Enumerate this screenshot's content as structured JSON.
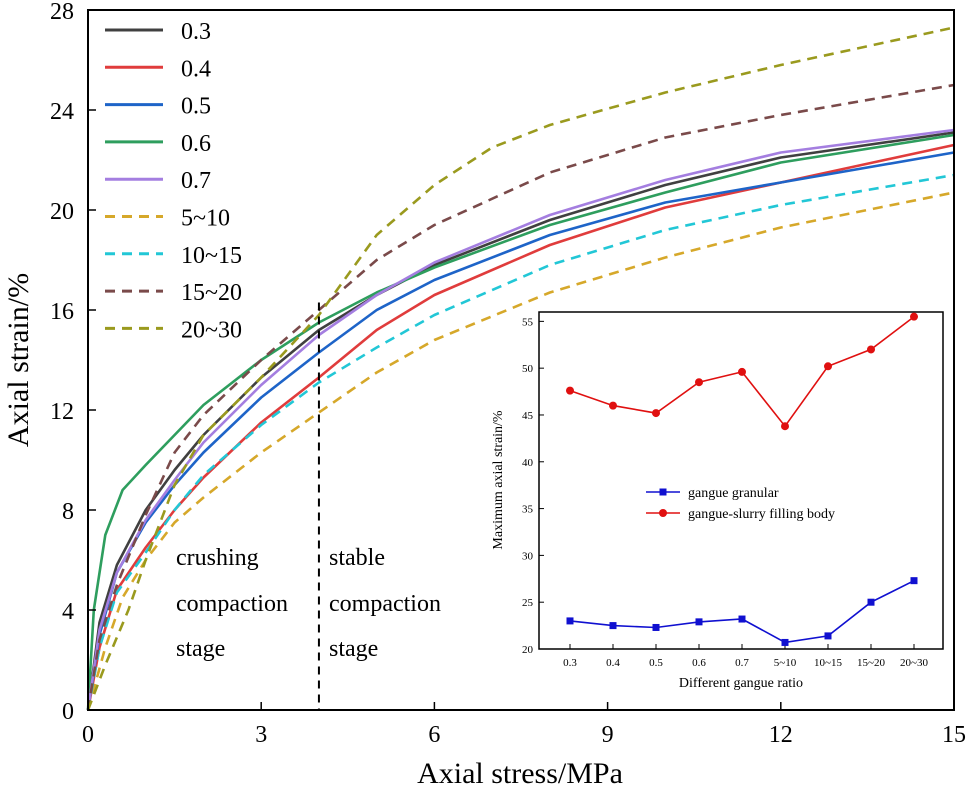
{
  "chart_data": [
    {
      "type": "line",
      "xlabel": "Axial stress/MPa",
      "ylabel": "Axial strain/%",
      "xlim": [
        0,
        15
      ],
      "ylim": [
        0,
        28
      ],
      "xticks": [
        0,
        3,
        6,
        9,
        12,
        15
      ],
      "yticks": [
        0,
        4,
        8,
        12,
        16,
        20,
        24,
        28
      ],
      "legend_position": "top-left",
      "divider": {
        "x": 4,
        "style": "dashed",
        "color": "#000000"
      },
      "annotations": [
        {
          "id": "crushing",
          "lines": [
            "crushing",
            "compaction",
            "stage"
          ]
        },
        {
          "id": "stable",
          "lines": [
            "stable",
            "compaction",
            "stage"
          ]
        }
      ],
      "series": [
        {
          "name": "0.3",
          "color": "#404040",
          "dash": "solid",
          "x": [
            0,
            0.2,
            0.5,
            1,
            1.5,
            2,
            3,
            4,
            5,
            6,
            8,
            10,
            12,
            15
          ],
          "y": [
            0,
            3.5,
            5.8,
            8,
            9.6,
            11,
            13.3,
            15.2,
            16.6,
            17.8,
            19.6,
            21,
            22.1,
            23.1
          ]
        },
        {
          "name": "0.4",
          "color": "#e03c3c",
          "dash": "solid",
          "x": [
            0,
            0.2,
            0.5,
            1,
            1.5,
            2,
            3,
            4,
            5,
            6,
            8,
            10,
            12,
            15
          ],
          "y": [
            0,
            2.5,
            4.8,
            6.5,
            8,
            9.3,
            11.5,
            13.3,
            15.2,
            16.6,
            18.6,
            20.1,
            21.1,
            22.6
          ]
        },
        {
          "name": "0.5",
          "color": "#1e64c8",
          "dash": "solid",
          "x": [
            0,
            0.2,
            0.5,
            1,
            1.5,
            2,
            3,
            4,
            5,
            6,
            8,
            10,
            12,
            15
          ],
          "y": [
            0,
            3,
            5.5,
            7.5,
            9,
            10.3,
            12.5,
            14.3,
            16,
            17.2,
            19,
            20.3,
            21.1,
            22.3
          ]
        },
        {
          "name": "0.6",
          "color": "#2e9e5e",
          "dash": "solid",
          "x": [
            0,
            0.1,
            0.3,
            0.6,
            1,
            1.5,
            2,
            3,
            4,
            5,
            6,
            8,
            10,
            12,
            15
          ],
          "y": [
            0,
            4,
            7,
            8.8,
            9.8,
            11,
            12.2,
            14,
            15.5,
            16.7,
            17.7,
            19.4,
            20.7,
            21.9,
            23
          ]
        },
        {
          "name": "0.7",
          "color": "#a47ee0",
          "dash": "solid",
          "x": [
            0,
            0.2,
            0.5,
            1,
            1.5,
            2,
            3,
            4,
            5,
            6,
            8,
            10,
            12,
            15
          ],
          "y": [
            0,
            3.2,
            5.5,
            7.6,
            9.2,
            10.7,
            13,
            15,
            16.6,
            17.9,
            19.8,
            21.2,
            22.3,
            23.2
          ]
        },
        {
          "name": "5~10",
          "color": "#d6a82a",
          "dash": "dashed",
          "x": [
            0,
            0.3,
            0.6,
            1,
            1.5,
            2,
            3,
            4,
            5,
            6,
            8,
            10,
            12,
            15
          ],
          "y": [
            0,
            2.5,
            4.5,
            6,
            7.5,
            8.5,
            10.3,
            11.9,
            13.5,
            14.8,
            16.7,
            18.1,
            19.3,
            20.7
          ]
        },
        {
          "name": "10~15",
          "color": "#22c7d6",
          "dash": "dashed",
          "x": [
            0,
            0.2,
            0.5,
            1,
            1.5,
            2,
            3,
            4,
            5,
            6,
            8,
            10,
            12,
            15
          ],
          "y": [
            0,
            2.5,
            4.7,
            6.3,
            8,
            9.4,
            11.4,
            13.1,
            14.5,
            15.8,
            17.8,
            19.2,
            20.2,
            21.4
          ]
        },
        {
          "name": "15~20",
          "color": "#7a4a4a",
          "dash": "dashed",
          "x": [
            0,
            0.2,
            0.5,
            1,
            1.5,
            2,
            3,
            4,
            5,
            6,
            8,
            10,
            12,
            15
          ],
          "y": [
            0,
            2.8,
            5,
            7.8,
            10.3,
            11.8,
            14,
            16,
            18,
            19.4,
            21.5,
            22.9,
            23.8,
            25
          ]
        },
        {
          "name": "20~30",
          "color": "#9a9a1e",
          "dash": "dashed",
          "x": [
            0,
            0.3,
            0.7,
            1,
            1.5,
            2,
            3,
            4,
            5,
            6,
            7,
            8,
            10,
            12,
            15
          ],
          "y": [
            0,
            1.8,
            4,
            6,
            9,
            11,
            13.3,
            15.8,
            19,
            21,
            22.5,
            23.4,
            24.7,
            25.8,
            27.3
          ]
        }
      ]
    },
    {
      "type": "line",
      "id": "inset",
      "xlabel": "Different gangue ratio",
      "ylabel": "Maximum axial strain/%",
      "categories": [
        "0.3",
        "0.4",
        "0.5",
        "0.6",
        "0.7",
        "5~10",
        "10~15",
        "15~20",
        "20~30"
      ],
      "ylim": [
        20,
        56
      ],
      "yticks": [
        20,
        25,
        30,
        35,
        40,
        45,
        50,
        55
      ],
      "legend_position": "center",
      "series": [
        {
          "name": "gangue granular",
          "color": "#1010d0",
          "marker": "square",
          "values": [
            23.0,
            22.5,
            22.3,
            22.9,
            23.2,
            20.7,
            21.4,
            25.0,
            27.3
          ]
        },
        {
          "name": "gangue-slurry filling body",
          "color": "#e01010",
          "marker": "circle",
          "values": [
            47.6,
            46.0,
            45.2,
            48.5,
            49.6,
            43.8,
            50.2,
            52.0,
            55.5
          ]
        }
      ]
    }
  ]
}
